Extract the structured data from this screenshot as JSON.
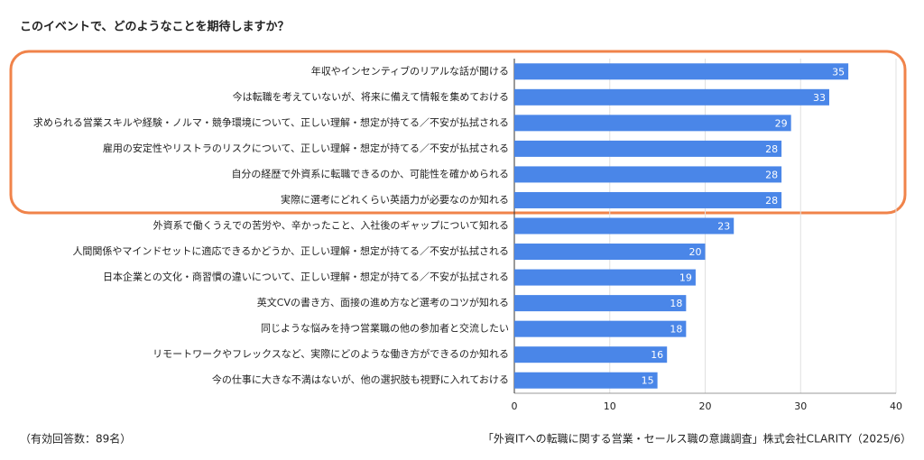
{
  "chart_data": {
    "type": "barh",
    "title": "このイベントで、どのようなことを期待しますか？",
    "categories": [
      "年収やインセンティブのリアルな話が聞ける",
      "今は転職を考えていないが、将来に備えて情報を集めておける",
      "求められる営業スキルや経験・ノルマ・競争環境について、正しい理解・想定が持てる／不安が払拭される",
      "雇用の安定性やリストラのリスクについて、正しい理解・想定が持てる／不安が払拭される",
      "自分の経歴で外資系に転職できるのか、可能性を確かめられる",
      "実際に選考にどれくらい英語力が必要なのか知れる",
      "外資系で働くうえでの苦労や、辛かったこと、入社後のギャップについて知れる",
      "人間関係やマインドセットに適応できるかどうか、正しい理解・想定が持てる／不安が払拭される",
      "日本企業との文化・商習慣の違いについて、正しい理解・想定が持てる／不安が払拭される",
      "英文CVの書き方、面接の進め方など選考のコツが知れる",
      "同じような悩みを持つ営業職の他の参加者と交流したい",
      "リモートワークやフレックスなど、実際にどのような働き方ができるのか知れる",
      "今の仕事に大きな不満はないが、他の選択肢も視野に入れておける"
    ],
    "values": [
      35,
      33,
      29,
      28,
      28,
      28,
      23,
      20,
      19,
      18,
      18,
      16,
      15
    ],
    "color": "#4a86e8",
    "xlim": [
      0,
      40
    ],
    "xticks": [
      0,
      10,
      20,
      30,
      40
    ],
    "grid": true,
    "note": "（有効回答数：89名）",
    "source": "「外資ITへの転職に関する営業・セールス職の意識調査」株式会社CLARITY（2025/6）"
  }
}
